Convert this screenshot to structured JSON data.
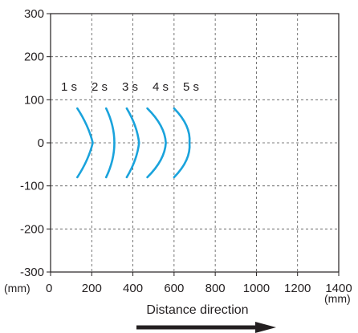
{
  "chart_data": {
    "type": "line",
    "title": "",
    "xlabel": "Distance direction",
    "ylabel": "",
    "x_unit": "(mm)",
    "y_unit": "(mm)",
    "xlim": [
      0,
      1400
    ],
    "ylim": [
      -300,
      300
    ],
    "x_ticks": [
      0,
      200,
      400,
      600,
      800,
      1000,
      1200,
      1400
    ],
    "y_ticks": [
      300,
      200,
      100,
      0,
      -100,
      -200,
      -300
    ],
    "grid": true,
    "grid_style": "dashed",
    "direction_arrow": "right",
    "colors": {
      "series": "#1aa3dc",
      "axis": "#231f20",
      "grid": "#555555"
    },
    "series": [
      {
        "name": "1 s",
        "points": [
          [
            130,
            80
          ],
          [
            176,
            40
          ],
          [
            205,
            0
          ],
          [
            176,
            -40
          ],
          [
            130,
            -80
          ]
        ]
      },
      {
        "name": "2 s",
        "points": [
          [
            270,
            80
          ],
          [
            300,
            40
          ],
          [
            310,
            0
          ],
          [
            300,
            -40
          ],
          [
            270,
            -80
          ]
        ]
      },
      {
        "name": "3 s",
        "points": [
          [
            370,
            80
          ],
          [
            410,
            40
          ],
          [
            430,
            0
          ],
          [
            410,
            -40
          ],
          [
            370,
            -80
          ]
        ]
      },
      {
        "name": "4 s",
        "points": [
          [
            470,
            80
          ],
          [
            535,
            40
          ],
          [
            560,
            0
          ],
          [
            535,
            -40
          ],
          [
            470,
            -80
          ]
        ]
      },
      {
        "name": "5 s",
        "points": [
          [
            600,
            80
          ],
          [
            660,
            40
          ],
          [
            675,
            0
          ],
          [
            660,
            -40
          ],
          [
            600,
            -80
          ]
        ]
      }
    ]
  }
}
